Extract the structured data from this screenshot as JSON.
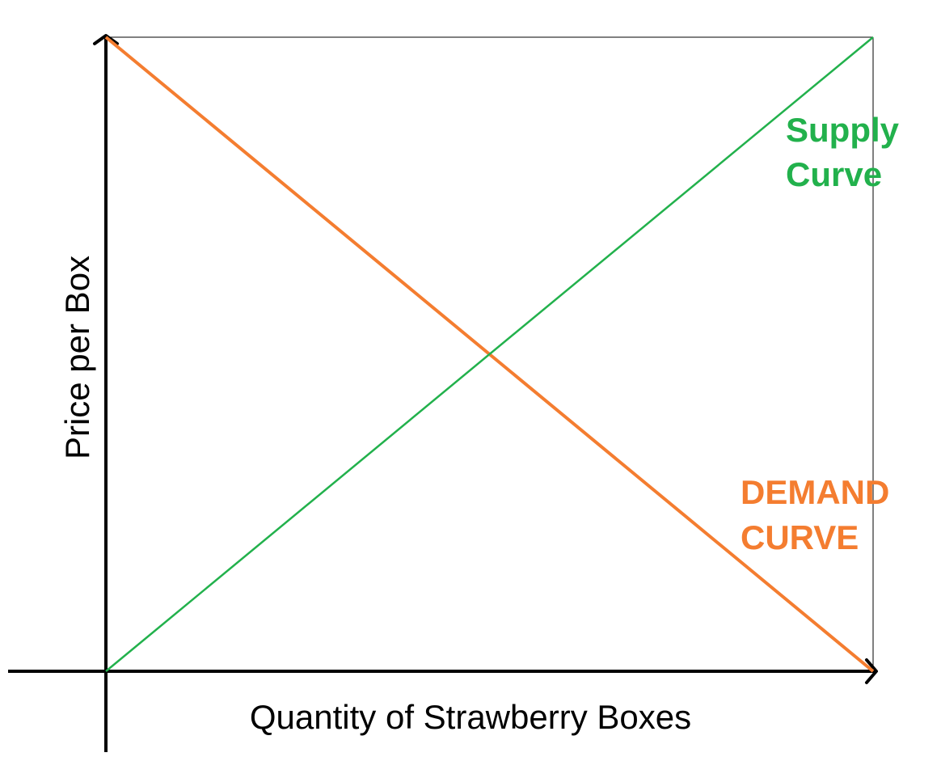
{
  "chart_data": {
    "type": "line",
    "title": "",
    "xlabel": "Quantity of Strawberry Boxes",
    "ylabel": "Price per Box",
    "xlim": [
      0,
      1
    ],
    "ylim": [
      0,
      1
    ],
    "grid": false,
    "series": [
      {
        "name": "DEMAND CURVE",
        "label_lines": [
          "DEMAND",
          "CURVE"
        ],
        "color": "#f47d30",
        "x": [
          0,
          1
        ],
        "y": [
          1,
          0
        ]
      },
      {
        "name": "Supply Curve",
        "label_lines": [
          "Supply",
          "Curve"
        ],
        "color": "#22b14c",
        "x": [
          0,
          1
        ],
        "y": [
          0,
          1
        ]
      }
    ]
  }
}
